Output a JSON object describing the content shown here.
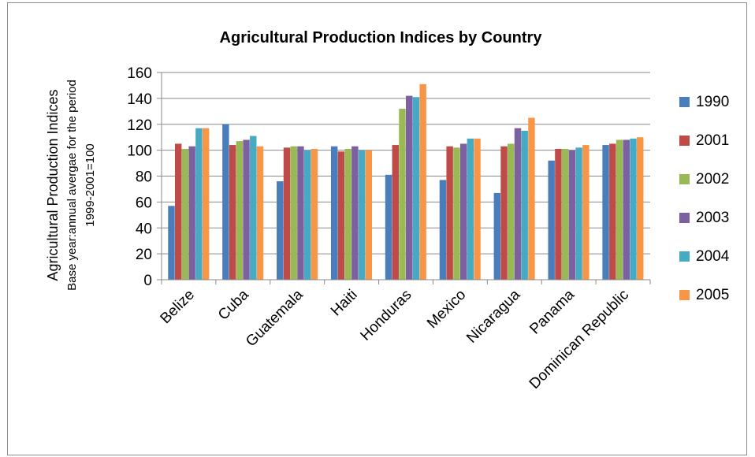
{
  "chart_data": {
    "type": "bar",
    "title": "Agricultural Production Indices by Country",
    "ylabel_main": "Agricultural Production Indices",
    "ylabel_sub1": "Base year:annual avergae for the period",
    "ylabel_sub2": "1999-2001=100",
    "xlabel": "",
    "ylim": [
      0,
      160
    ],
    "yticks": [
      0,
      20,
      40,
      60,
      80,
      100,
      120,
      140,
      160
    ],
    "grid": true,
    "legend_position": "right",
    "categories": [
      "Belize",
      "Cuba",
      "Guatemala",
      "Haiti",
      "Honduras",
      "Mexico",
      "Nicaragua",
      "Panama",
      "Dominican Republic"
    ],
    "series": [
      {
        "name": "1990",
        "color": "#4a7ebb",
        "values": [
          57,
          120,
          76,
          103,
          81,
          77,
          67,
          92,
          104
        ]
      },
      {
        "name": "2001",
        "color": "#be4b48",
        "values": [
          105,
          104,
          102,
          99,
          104,
          103,
          103,
          101,
          105
        ]
      },
      {
        "name": "2002",
        "color": "#98b954",
        "values": [
          101,
          107,
          103,
          101,
          132,
          102,
          105,
          101,
          108
        ]
      },
      {
        "name": "2003",
        "color": "#7d60a0",
        "values": [
          103,
          108,
          103,
          103,
          142,
          105,
          117,
          100,
          108
        ]
      },
      {
        "name": "2004",
        "color": "#46aac5",
        "values": [
          117,
          111,
          100,
          100,
          141,
          109,
          115,
          102,
          109
        ]
      },
      {
        "name": "2005",
        "color": "#f79646",
        "values": [
          117,
          103,
          101,
          100,
          151,
          109,
          125,
          104,
          110
        ]
      }
    ]
  }
}
